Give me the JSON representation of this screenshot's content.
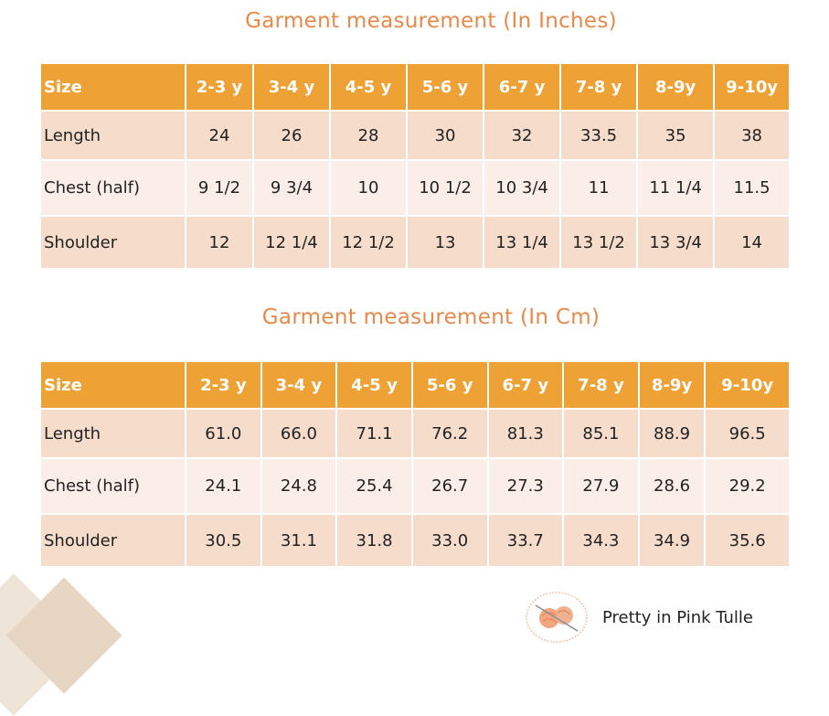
{
  "inches": {
    "title": "Garment measurement (In Inches)",
    "header": [
      "Size",
      "2-3 y",
      "3-4 y",
      "4-5 y",
      "5-6 y",
      "6-7 y",
      "7-8 y",
      "8-9y",
      "9-10y"
    ],
    "rows": [
      [
        "Length",
        "24",
        "26",
        "28",
        "30",
        "32",
        "33.5",
        "35",
        "38"
      ],
      [
        "Chest (half)",
        "9 1/2",
        "9 3/4",
        "10",
        "10 1/2",
        "10 3/4",
        "11",
        "11 1/4",
        "11.5"
      ],
      [
        "Shoulder",
        "12",
        "12 1/4",
        "12 1/2",
        "13",
        "13 1/4",
        "13 1/2",
        "13 3/4",
        "14"
      ]
    ]
  },
  "cm": {
    "title": "Garment measurement (In Cm)",
    "header": [
      "Size",
      "2-3 y",
      "3-4 y",
      "4-5 y",
      "5-6 y",
      "6-7 y",
      "7-8 y",
      "8-9y",
      "9-10y"
    ],
    "rows": [
      [
        "Length",
        "61.0",
        "66.0",
        "71.1",
        "76.2",
        "81.3",
        "85.1",
        "88.9",
        "96.5"
      ],
      [
        "Chest (half)",
        "24.1",
        "24.8",
        "25.4",
        "26.7",
        "27.3",
        "27.9",
        "28.6",
        "29.2"
      ],
      [
        "Shoulder",
        "30.5",
        "31.1",
        "31.8",
        "33.0",
        "33.7",
        "34.3",
        "34.9",
        "35.6"
      ]
    ]
  },
  "brand": {
    "name": "Pretty in Pink Tulle",
    "logo_icon": "yarn-ball-logo"
  },
  "colors": {
    "header": "#eea236",
    "title": "#e8894a",
    "row_dark": "#f6dccb",
    "row_light": "#fbeee8"
  }
}
